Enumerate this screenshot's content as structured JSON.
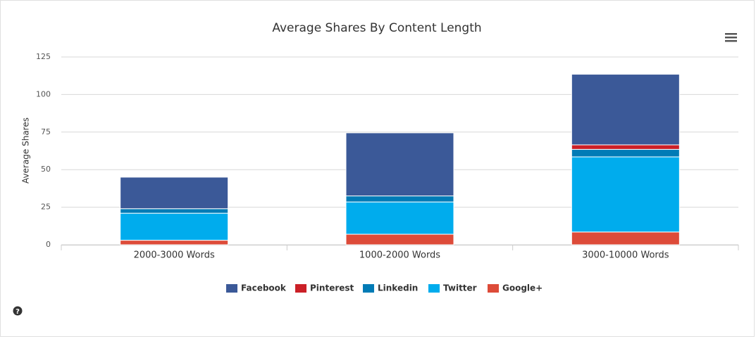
{
  "chart_data": {
    "type": "stacked_bar",
    "title": "Average Shares By Content Length",
    "y_label": "Average Shares",
    "categories": [
      "2000-3000 Words",
      "1000-2000 Words",
      "3000-10000 Words"
    ],
    "series": [
      {
        "name": "Facebook",
        "color": "#3b5998",
        "values": [
          21,
          42,
          47
        ]
      },
      {
        "name": "Pinterest",
        "color": "#cb2027",
        "values": [
          0,
          0,
          3
        ]
      },
      {
        "name": "Linkedin",
        "color": "#007bb6",
        "values": [
          3,
          4,
          5
        ]
      },
      {
        "name": "Twitter",
        "color": "#00aced",
        "values": [
          18,
          21.5,
          50
        ]
      },
      {
        "name": "Google+",
        "color": "#dd4b39",
        "values": [
          3,
          7,
          8.5
        ]
      }
    ],
    "ylim": [
      0,
      125
    ],
    "yticks": [
      0,
      25,
      50,
      75,
      100,
      125
    ],
    "grid": true,
    "legend": "bottom"
  }
}
